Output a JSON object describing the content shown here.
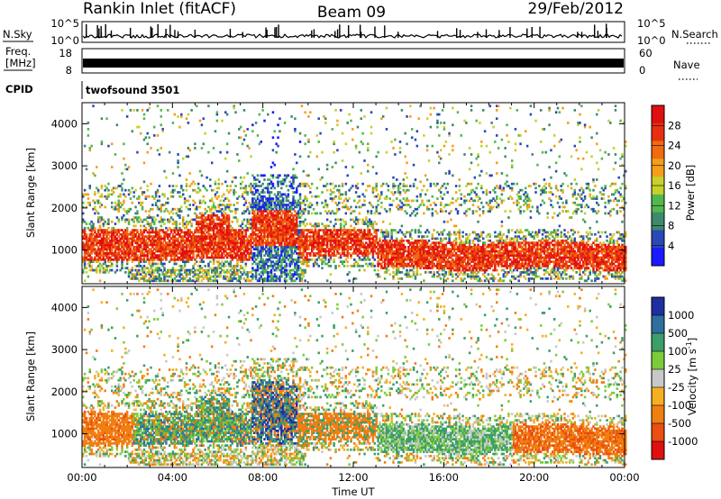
{
  "header": {
    "station": "Rankin Inlet (fitACF)",
    "beam": "Beam 09",
    "date": "29/Feb/2012"
  },
  "side_labels": {
    "nsky": "N.Sky",
    "freq_line1": "Freq.",
    "freq_line2": "[MHz]",
    "cpid": "CPID",
    "nsearch": "N.Search",
    "nave": "Nave"
  },
  "cpid_value": "twofsound 3501",
  "colors": {
    "power": [
      "#1a1aff",
      "#2a48b8",
      "#3e8a6e",
      "#52b84e",
      "#c8d02a",
      "#f59e1a",
      "#f06a10",
      "#e83010",
      "#e01010"
    ],
    "velocity": [
      "#1f2fa0",
      "#2e6fa0",
      "#3c9e68",
      "#7ccc3a",
      "#c8c8c8",
      "#f6ae22",
      "#f07f12",
      "#ea4e10",
      "#e01010"
    ]
  },
  "chart_data": [
    {
      "type": "line",
      "panel": "noise-sky-search",
      "ylabel": "N.Sky",
      "y2label": "N.Search",
      "yticks": [
        "10^5",
        "10^0"
      ],
      "y2ticks": [
        "10^5",
        "10^0"
      ],
      "xrange_hours": [
        0,
        24
      ]
    },
    {
      "type": "line",
      "panel": "frequency-nave",
      "ylabel": "Freq. [MHz]",
      "y2label": "Nave",
      "ylim": [
        8,
        18
      ],
      "yticks": [
        18,
        8
      ],
      "y2lim": [
        0,
        60
      ],
      "y2ticks": [
        60,
        0
      ],
      "frequency_mhz_approx": 10.5,
      "xrange_hours": [
        0,
        24
      ]
    },
    {
      "type": "heatmap",
      "panel": "power",
      "title": "",
      "xlabel": "",
      "ylabel": "Slant Range [km]",
      "xlim_hours": [
        0,
        24
      ],
      "ylim": [
        200,
        4500
      ],
      "yticks": [
        1000,
        2000,
        3000,
        4000
      ],
      "colorbar_label": "Power [dB]",
      "colorbar_ticks": [
        28,
        24,
        20,
        16,
        12,
        8,
        4
      ],
      "colorbar_range": [
        0,
        32
      ]
    },
    {
      "type": "heatmap",
      "panel": "velocity",
      "title": "",
      "xlabel": "Time UT",
      "ylabel": "Slant Range [km]",
      "xlim_hours": [
        0,
        24
      ],
      "xticks": [
        "00:00",
        "04:00",
        "08:00",
        "12:00",
        "16:00",
        "20:00",
        "00:00"
      ],
      "ylim": [
        200,
        4500
      ],
      "yticks": [
        1000,
        2000,
        3000,
        4000
      ],
      "colorbar_label": "Velocity [m s",
      "colorbar_label_exp": "-1",
      "colorbar_label_close": "]",
      "colorbar_ticks": [
        1000,
        500,
        100,
        25,
        -25,
        -100,
        -500,
        -1000
      ]
    }
  ]
}
